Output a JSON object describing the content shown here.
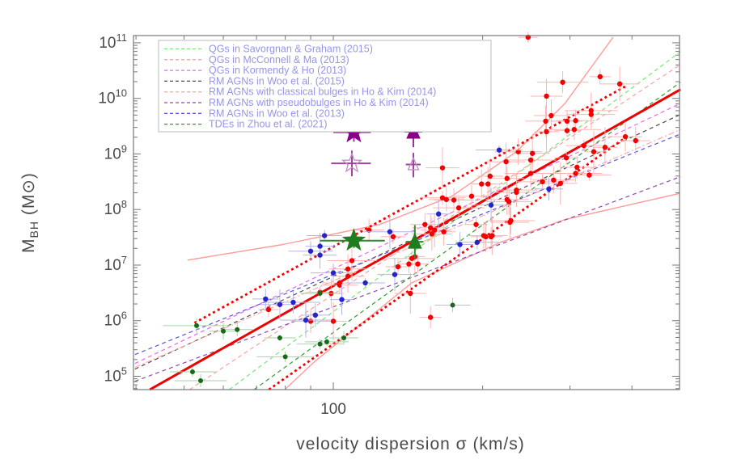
{
  "chart_data": {
    "type": "scatter",
    "title": "",
    "xlabel": "velocity dispersion σ (km/s)",
    "ylabel_prefix": "M",
    "ylabel_sub": "BH",
    "ylabel_suffix": " (M⊙)",
    "x_major_tick_label": "100",
    "axis_color": "#777777",
    "label_color": "#4a4a4a",
    "xlog_range": [
      1.597,
      2.698
    ],
    "ylog_range": [
      4.76,
      11.13
    ],
    "x_major_ticks": [
      100
    ],
    "x_minor_ticks": [
      40,
      50,
      60,
      70,
      80,
      90,
      200,
      300,
      400
    ],
    "y_major_exponents": [
      5,
      6,
      7,
      8,
      9,
      10,
      11
    ],
    "grid": false,
    "legend": {
      "position": "top-left",
      "text_color": "#9595e8",
      "border_color": "#bbbbbb",
      "entries": [
        {
          "label": "QGs in Savorgnan & Graham (2015)",
          "color": "#77e877",
          "line": "savorgnan"
        },
        {
          "label": "QGs in McConnell & Ma (2013)",
          "color": "#ff9e9e",
          "line": "mcconnell"
        },
        {
          "label": "QGs in Kormendy & Ho (2013)",
          "color": "#ee66ee",
          "line": "kormendy"
        },
        {
          "label": "RM AGNs in Woo et al. (2015)",
          "color": "#4d4d4d",
          "line": "woo15"
        },
        {
          "label": "RM AGNs with classical bulges in Ho & Kim (2014)",
          "color": "#ffaaaa",
          "line": "hokim_classical"
        },
        {
          "label": "RM AGNs with pseudobulges in Ho & Kim (2014)",
          "color": "#9147b1",
          "line": "hokim_pseudo"
        },
        {
          "label": "RM AGNs in Woo et al. (2013)",
          "color": "#5858e0",
          "line": "woo13"
        },
        {
          "label": "TDEs in Zhou et al. (2021)",
          "color": "#2f9e2f",
          "line": "zhou_tde"
        }
      ]
    },
    "series": [
      {
        "name": "rm-agn-red",
        "marker": "circle",
        "radius": 3.2,
        "color": "#f50000",
        "err_color": "#ffb2b2",
        "points": [
          [
            247,
            11.1
          ],
          [
            290,
            10.29
          ],
          [
            345,
            10.39
          ],
          [
            378,
            10.26
          ],
          [
            269,
            10.04
          ],
          [
            275,
            9.69
          ],
          [
            268,
            9.59
          ],
          [
            269,
            9.4
          ],
          [
            296,
            9.59
          ],
          [
            308,
            9.6
          ],
          [
            331,
            9.78
          ],
          [
            331,
            9.71
          ],
          [
            296,
            9.42
          ],
          [
            306,
            9.44
          ],
          [
            236,
            9.04
          ],
          [
            252,
            9.01
          ],
          [
            250,
            8.89
          ],
          [
            224,
            8.56
          ],
          [
            234,
            8.35
          ],
          [
            205,
            8.46
          ],
          [
            226,
            8.14
          ],
          [
            227,
            7.77
          ],
          [
            278,
            8.53
          ],
          [
            287,
            8.47
          ],
          [
            295,
            8.93
          ],
          [
            310,
            8.76
          ],
          [
            320,
            9.15
          ],
          [
            335,
            9.04
          ],
          [
            353,
            9.12
          ],
          [
            388,
            9.31
          ],
          [
            308,
            8.65
          ],
          [
            328,
            8.62
          ],
          [
            407,
            9.24
          ],
          [
            166,
            8.75
          ],
          [
            207,
            8.6
          ],
          [
            223,
            8.86
          ],
          [
            250,
            8.65
          ],
          [
            264,
            8.5
          ],
          [
            169,
            8.18
          ],
          [
            166,
            8.21
          ],
          [
            175,
            8.17
          ],
          [
            179,
            8.03
          ],
          [
            190,
            8.24
          ],
          [
            199,
            8.46
          ],
          [
            224,
            8.18
          ],
          [
            234,
            8.31
          ],
          [
            153,
            7.73
          ],
          [
            157,
            7.67
          ],
          [
            167,
            7.6
          ],
          [
            194,
            7.73
          ],
          [
            203,
            7.51
          ],
          [
            208,
            7.51
          ],
          [
            228,
            7.8
          ],
          [
            107,
            6.93
          ],
          [
            107,
            6.8
          ],
          [
            109,
            7.08
          ],
          [
            103,
            6.68
          ],
          [
            100,
            5.99
          ],
          [
            118,
            7.63
          ],
          [
            132,
            7.51
          ],
          [
            135,
            6.97
          ],
          [
            142,
            7.02
          ],
          [
            144,
            7.12
          ],
          [
            146,
            7.15
          ],
          [
            148,
            7.02
          ],
          [
            157,
            6.06
          ],
          [
            158,
            7.56
          ],
          [
            160,
            7.63
          ],
          [
            201,
            7.53
          ],
          [
            209,
            7.53
          ],
          [
            143,
            6.49
          ],
          [
            103,
            6.64
          ],
          [
            99,
            6.49
          ],
          [
            74,
            6.2
          ],
          [
            94,
            6.51
          ],
          [
            90,
            5.99
          ]
        ],
        "typical_xerr_dex": 0.035,
        "typical_yerr_dex": 0.22
      },
      {
        "name": "rm-agn-blue",
        "marker": "circle",
        "radius": 3.2,
        "color": "#2424cc",
        "err_color": "#b4b4e6",
        "points": [
          [
            90,
            7.25
          ],
          [
            94,
            7.34
          ],
          [
            94,
            7.18
          ],
          [
            73,
            6.39
          ],
          [
            78,
            6.29
          ],
          [
            83,
            6.33
          ],
          [
            88,
            6.01
          ],
          [
            96,
            7.53
          ],
          [
            100,
            6.86
          ],
          [
            116,
            6.68
          ],
          [
            130,
            7.6
          ],
          [
            133,
            6.83
          ],
          [
            180,
            7.37
          ],
          [
            195,
            7.41
          ],
          [
            216,
            9.07
          ],
          [
            272,
            8.37
          ],
          [
            208,
            8.08
          ],
          [
            163,
            7.92
          ],
          [
            104,
            6.38
          ],
          [
            92,
            6.1
          ]
        ],
        "typical_xerr_dex": 0.035,
        "typical_yerr_dex": 0.18
      },
      {
        "name": "tde-green",
        "marker": "circle",
        "radius": 3.0,
        "color": "#156b15",
        "err_color": "#a2d6a2",
        "points": [
          [
            53,
            5.91
          ],
          [
            60,
            5.81
          ],
          [
            64,
            5.84
          ],
          [
            78,
            5.69
          ],
          [
            80,
            5.35
          ],
          [
            94,
            6.49
          ],
          [
            94,
            5.58
          ],
          [
            97,
            5.62
          ],
          [
            52,
            5.08
          ],
          [
            54,
            4.92
          ],
          [
            174,
            6.28
          ],
          [
            105,
            5.69
          ]
        ],
        "typical_xerr_dex": 0.05,
        "typical_yerr_dex": 0.1
      }
    ],
    "highlights": [
      {
        "name": "tde1-star-filled",
        "marker": "star",
        "open": false,
        "size": 14,
        "color": "#8b008b",
        "err_color": "#993299",
        "sigma": 110,
        "logM": 9.39,
        "xerr": [
          100,
          119
        ],
        "yerr": [
          9.22,
          9.55
        ]
      },
      {
        "name": "tde2-triangle-filled",
        "marker": "triangle",
        "open": false,
        "size": 10,
        "color": "#8b008b",
        "err_color": "#993299",
        "sigma": 145,
        "logM": 9.4,
        "xerr": [
          139,
          151
        ],
        "yerr": [
          9.12,
          9.62
        ]
      },
      {
        "name": "tde1-star-open",
        "marker": "star",
        "open": true,
        "size": 12,
        "color": "#c490c4",
        "err_color": "#a040a0",
        "sigma": 109,
        "logM": 8.83,
        "xerr": [
          99,
          119
        ],
        "yerr": [
          8.6,
          9.06
        ]
      },
      {
        "name": "tde2-triangle-open",
        "marker": "triangle",
        "open": true,
        "size": 8,
        "color": "#c490c4",
        "err_color": "#a040a0",
        "sigma": 145,
        "logM": 8.81,
        "xerr": [
          140,
          150
        ],
        "yerr": [
          8.58,
          9.02
        ]
      },
      {
        "name": "tde1-star-green",
        "marker": "star",
        "open": false,
        "size": 14,
        "color": "#1e7d1e",
        "err_color": "#2e8b2e",
        "sigma": 110,
        "logM": 7.44,
        "xerr": [
          94,
          127
        ],
        "yerr": [
          7.31,
          7.57
        ]
      },
      {
        "name": "tde2-triangle-green",
        "marker": "triangle",
        "open": false,
        "size": 10,
        "color": "#1e7d1e",
        "err_color": "#2e8b2e",
        "sigma": 146,
        "logM": 7.42,
        "xerr": [
          140,
          152
        ],
        "yerr": [
          7.12,
          7.72
        ]
      }
    ],
    "fit_lines": [
      {
        "name": "conf_upper",
        "color": "#ff9a9a",
        "width": 1.4,
        "dash": "",
        "pts": [
          [
            1.706,
            7.09
          ],
          [
            1.898,
            7.37
          ],
          [
            2.093,
            7.73
          ],
          [
            2.239,
            8.24
          ],
          [
            2.369,
            9.04
          ],
          [
            2.467,
            9.91
          ],
          [
            2.564,
            11.1
          ]
        ]
      },
      {
        "name": "conf_lower",
        "color": "#ff9a9a",
        "width": 1.4,
        "dash": "",
        "pts": [
          [
            1.902,
            4.76
          ],
          [
            1.963,
            5.27
          ],
          [
            2.158,
            6.68
          ],
          [
            2.337,
            7.41
          ],
          [
            2.467,
            7.82
          ],
          [
            2.698,
            8.29
          ]
        ]
      },
      {
        "name": "savorgnan",
        "color": "#77e877",
        "width": 1.2,
        "dash": "5,4",
        "pts": [
          [
            1.79,
            4.76
          ],
          [
            2.7,
            10.84
          ]
        ]
      },
      {
        "name": "mcconnell",
        "color": "#ff9e9e",
        "width": 1.2,
        "dash": "5,4",
        "pts": [
          [
            1.71,
            4.76
          ],
          [
            2.7,
            10.61
          ]
        ]
      },
      {
        "name": "kormendy",
        "color": "#ee66ee",
        "width": 1.2,
        "dash": "5,4",
        "pts": [
          [
            1.6,
            5.23
          ],
          [
            2.7,
            9.91
          ]
        ]
      },
      {
        "name": "woo15",
        "color": "#4d4d4d",
        "width": 1.2,
        "dash": "5,4",
        "pts": [
          [
            1.6,
            5.13
          ],
          [
            2.7,
            9.71
          ]
        ]
      },
      {
        "name": "hokim_classical",
        "color": "#ffaaaa",
        "width": 1.2,
        "dash": "7,3,2,3",
        "pts": [
          [
            1.6,
            5.16
          ],
          [
            2.7,
            9.44
          ]
        ]
      },
      {
        "name": "hokim_pseudo",
        "color": "#9147b1",
        "width": 1.2,
        "dash": "5,4",
        "pts": [
          [
            1.6,
            4.91
          ],
          [
            2.7,
            8.59
          ]
        ]
      },
      {
        "name": "woo13",
        "color": "#5858e0",
        "width": 1.2,
        "dash": "5,4",
        "pts": [
          [
            1.6,
            5.39
          ],
          [
            2.7,
            9.36
          ]
        ]
      },
      {
        "name": "zhou_tde",
        "color": "#2f9e2f",
        "width": 1.2,
        "dash": "5,4",
        "pts": [
          [
            1.84,
            4.76
          ],
          [
            2.7,
            10.29
          ]
        ]
      },
      {
        "name": "fit_scatter_hi",
        "color": "#f50000",
        "width": 2.8,
        "dash": "3,3.5",
        "pts": [
          [
            1.72,
            5.96
          ],
          [
            2.59,
            10.22
          ]
        ]
      },
      {
        "name": "fit_scatter_lo",
        "color": "#f50000",
        "width": 2.8,
        "dash": "3,3.5",
        "pts": [
          [
            1.87,
            4.76
          ],
          [
            2.59,
            9.3
          ]
        ]
      },
      {
        "name": "main_fit",
        "color": "#ee0000",
        "width": 3.0,
        "dash": "",
        "pts": [
          [
            1.63,
            4.76
          ],
          [
            2.7,
            10.16
          ]
        ]
      }
    ]
  }
}
